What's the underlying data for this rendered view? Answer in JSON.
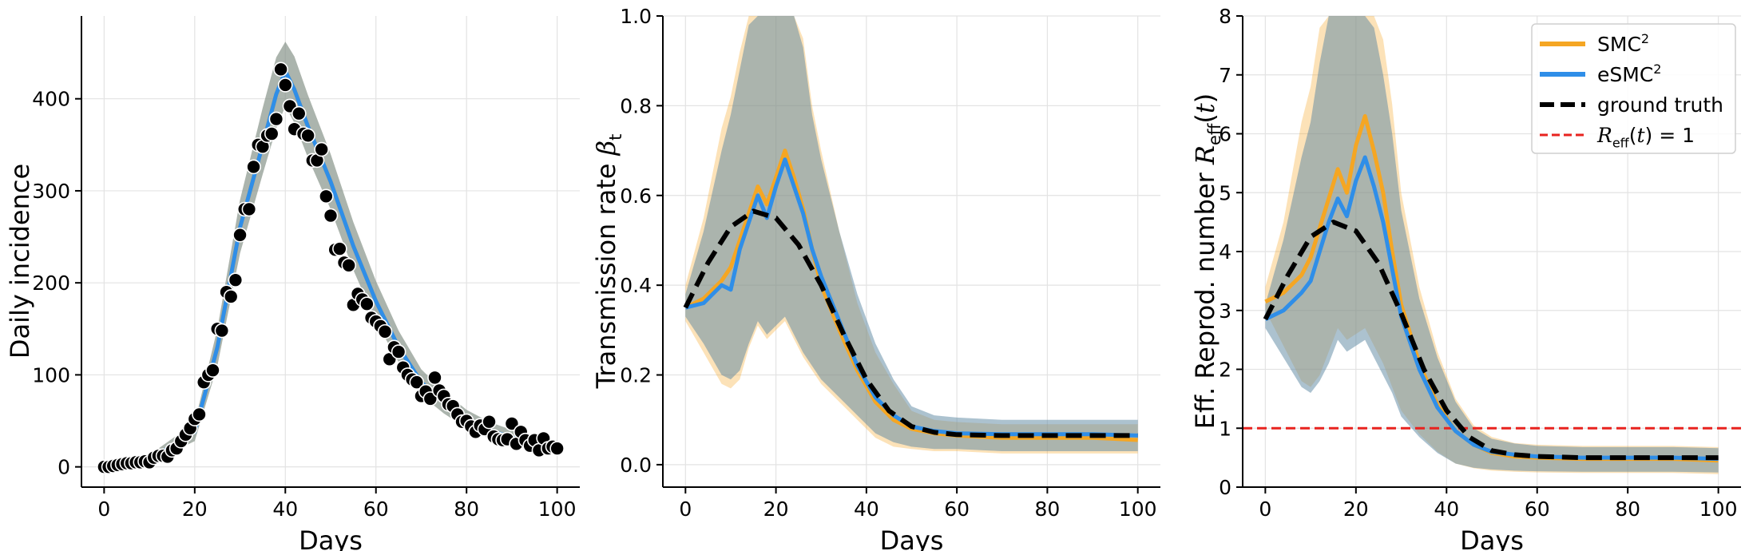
{
  "chart_data": [
    {
      "type": "line",
      "title": "",
      "xlabel": "Days",
      "ylabel": "Daily incidence",
      "xlim": [
        -5,
        105
      ],
      "ylim": [
        -22,
        490
      ],
      "xticks": [
        0,
        20,
        40,
        60,
        80,
        100
      ],
      "yticks": [
        0,
        100,
        200,
        300,
        400
      ],
      "grid": true,
      "observed_points": {
        "x": [
          0,
          1,
          2,
          3,
          4,
          5,
          6,
          7,
          8,
          9,
          10,
          11,
          12,
          13,
          14,
          15,
          16,
          17,
          18,
          19,
          20,
          21,
          22,
          23,
          24,
          25,
          26,
          27,
          28,
          29,
          30,
          31,
          32,
          33,
          34,
          35,
          36,
          37,
          38,
          39,
          40,
          41,
          42,
          43,
          44,
          45,
          46,
          47,
          48,
          49,
          50,
          51,
          52,
          53,
          54,
          55,
          56,
          57,
          58,
          59,
          60,
          61,
          62,
          63,
          64,
          65,
          66,
          67,
          68,
          69,
          70,
          71,
          72,
          73,
          74,
          75,
          76,
          77,
          78,
          79,
          80,
          81,
          82,
          83,
          84,
          85,
          86,
          87,
          88,
          89,
          90,
          91,
          92,
          93,
          94,
          95,
          96,
          97,
          98,
          99,
          100
        ],
        "y": [
          0,
          0,
          1,
          2,
          3,
          4,
          4,
          5,
          5,
          6,
          5,
          10,
          12,
          12,
          11,
          18,
          20,
          28,
          35,
          42,
          52,
          57,
          92,
          100,
          105,
          150,
          148,
          190,
          185,
          203,
          252,
          280,
          280,
          326,
          350,
          348,
          360,
          362,
          378,
          432,
          415,
          392,
          367,
          384,
          362,
          360,
          333,
          333,
          345,
          294,
          273,
          236,
          237,
          222,
          219,
          176,
          188,
          182,
          177,
          162,
          158,
          153,
          147,
          117,
          130,
          125,
          108,
          100,
          95,
          92,
          77,
          82,
          74,
          97,
          83,
          77,
          68,
          66,
          57,
          49,
          50,
          44,
          38,
          45,
          41,
          49,
          33,
          30,
          29,
          30,
          47,
          25,
          38,
          29,
          23,
          29,
          18,
          31,
          20,
          22,
          20
        ]
      },
      "series": [
        {
          "name": "SMC$^2$",
          "color": "#f5a623",
          "x": [
            0,
            10,
            20,
            25,
            30,
            35,
            38,
            40,
            42,
            45,
            50,
            55,
            60,
            65,
            70,
            75,
            80,
            85,
            90,
            95,
            100
          ],
          "y": [
            2,
            8,
            38,
            130,
            260,
            350,
            405,
            430,
            410,
            370,
            310,
            240,
            180,
            130,
            92,
            70,
            52,
            40,
            32,
            26,
            22
          ],
          "band_lo": [
            0,
            4,
            28,
            110,
            232,
            318,
            368,
            392,
            374,
            336,
            280,
            214,
            158,
            114,
            78,
            58,
            42,
            31,
            24,
            19,
            15
          ],
          "band_hi": [
            5,
            13,
            48,
            150,
            290,
            390,
            445,
            462,
            446,
            404,
            340,
            266,
            202,
            148,
            106,
            82,
            62,
            49,
            40,
            33,
            29
          ]
        },
        {
          "name": "eSMC$^2$",
          "color": "#2f8ee8",
          "x": [
            0,
            10,
            20,
            25,
            30,
            35,
            38,
            40,
            42,
            45,
            50,
            55,
            60,
            65,
            70,
            75,
            80,
            85,
            90,
            95,
            100
          ],
          "y": [
            2,
            8,
            38,
            130,
            260,
            350,
            405,
            430,
            410,
            370,
            310,
            240,
            180,
            130,
            92,
            70,
            52,
            40,
            32,
            26,
            22
          ],
          "band_lo": [
            0,
            4,
            28,
            110,
            232,
            318,
            368,
            392,
            374,
            336,
            280,
            214,
            158,
            114,
            78,
            58,
            42,
            31,
            24,
            19,
            15
          ],
          "band_hi": [
            5,
            13,
            48,
            150,
            290,
            390,
            445,
            462,
            446,
            404,
            340,
            266,
            202,
            148,
            106,
            82,
            62,
            49,
            40,
            33,
            29
          ]
        }
      ]
    },
    {
      "type": "line",
      "title": "",
      "xlabel": "Days",
      "ylabel": "Transmission rate $\\beta_t$",
      "xlim": [
        -5,
        105
      ],
      "ylim": [
        -0.05,
        1.0
      ],
      "xticks": [
        0,
        20,
        40,
        60,
        80,
        100
      ],
      "yticks": [
        0.0,
        0.2,
        0.4,
        0.6,
        0.8,
        1.0
      ],
      "grid": true,
      "series": [
        {
          "name": "SMC$^2$",
          "color": "#f5a623",
          "x": [
            0,
            4,
            8,
            10,
            12,
            14,
            16,
            18,
            20,
            22,
            24,
            26,
            28,
            30,
            34,
            38,
            42,
            46,
            50,
            55,
            60,
            70,
            80,
            90,
            100
          ],
          "y": [
            0.35,
            0.37,
            0.41,
            0.44,
            0.5,
            0.56,
            0.62,
            0.58,
            0.64,
            0.7,
            0.64,
            0.57,
            0.48,
            0.4,
            0.3,
            0.21,
            0.14,
            0.1,
            0.08,
            0.07,
            0.065,
            0.06,
            0.06,
            0.06,
            0.055
          ],
          "band_lo": [
            0.32,
            0.25,
            0.18,
            0.17,
            0.19,
            0.26,
            0.31,
            0.28,
            0.3,
            0.32,
            0.28,
            0.24,
            0.21,
            0.18,
            0.14,
            0.1,
            0.06,
            0.04,
            0.035,
            0.03,
            0.03,
            0.025,
            0.025,
            0.025,
            0.025
          ],
          "band_hi": [
            0.4,
            0.55,
            0.75,
            0.82,
            0.92,
            1.0,
            1.0,
            1.0,
            1.0,
            1.0,
            1.0,
            0.95,
            0.8,
            0.7,
            0.52,
            0.36,
            0.25,
            0.18,
            0.12,
            0.1,
            0.095,
            0.09,
            0.09,
            0.09,
            0.09
          ]
        },
        {
          "name": "eSMC$^2$",
          "color": "#2f8ee8",
          "x": [
            0,
            4,
            8,
            10,
            12,
            14,
            16,
            18,
            20,
            22,
            24,
            26,
            28,
            30,
            34,
            38,
            42,
            46,
            50,
            55,
            60,
            70,
            80,
            90,
            100
          ],
          "y": [
            0.35,
            0.36,
            0.4,
            0.39,
            0.48,
            0.54,
            0.6,
            0.55,
            0.62,
            0.68,
            0.62,
            0.56,
            0.48,
            0.42,
            0.32,
            0.22,
            0.15,
            0.11,
            0.085,
            0.075,
            0.07,
            0.068,
            0.068,
            0.068,
            0.065
          ],
          "band_lo": [
            0.33,
            0.27,
            0.2,
            0.19,
            0.21,
            0.27,
            0.32,
            0.29,
            0.31,
            0.33,
            0.29,
            0.25,
            0.22,
            0.19,
            0.15,
            0.11,
            0.07,
            0.05,
            0.04,
            0.035,
            0.035,
            0.03,
            0.03,
            0.03,
            0.03
          ],
          "band_hi": [
            0.38,
            0.52,
            0.7,
            0.78,
            0.88,
            0.98,
            1.0,
            1.0,
            1.0,
            1.0,
            1.0,
            0.93,
            0.78,
            0.68,
            0.52,
            0.38,
            0.27,
            0.19,
            0.13,
            0.11,
            0.105,
            0.1,
            0.1,
            0.1,
            0.1
          ]
        },
        {
          "name": "ground truth",
          "color": "#000000",
          "dashed": true,
          "x": [
            0,
            5,
            10,
            15,
            20,
            25,
            30,
            35,
            40,
            45,
            50,
            55,
            60,
            70,
            80,
            90,
            100
          ],
          "y": [
            0.35,
            0.45,
            0.53,
            0.565,
            0.55,
            0.49,
            0.4,
            0.29,
            0.19,
            0.12,
            0.085,
            0.072,
            0.067,
            0.065,
            0.065,
            0.065,
            0.065
          ]
        }
      ]
    },
    {
      "type": "line",
      "title": "",
      "xlabel": "Days",
      "ylabel": "Eff. Reprod. number $R_{\\mathrm{eff}}(t)$",
      "xlim": [
        -5,
        105
      ],
      "ylim": [
        0,
        8
      ],
      "xticks": [
        0,
        20,
        40,
        60,
        80,
        100
      ],
      "yticks": [
        0,
        1,
        2,
        3,
        4,
        5,
        6,
        7,
        8
      ],
      "grid": true,
      "legend": "top-right",
      "reference_line": {
        "name": "$R_{\\mathrm{eff}}(t) = 1$",
        "y": 1,
        "color": "#e8231f",
        "dashed": true
      },
      "series": [
        {
          "name": "SMC$^2$",
          "color": "#f5a623",
          "x": [
            0,
            4,
            8,
            10,
            12,
            14,
            16,
            18,
            20,
            22,
            24,
            26,
            28,
            30,
            34,
            38,
            42,
            46,
            50,
            55,
            60,
            70,
            80,
            90,
            100
          ],
          "y": [
            3.15,
            3.3,
            3.6,
            3.9,
            4.4,
            4.9,
            5.4,
            5.0,
            5.8,
            6.3,
            5.7,
            5.0,
            4.0,
            3.1,
            2.1,
            1.4,
            0.95,
            0.72,
            0.58,
            0.52,
            0.5,
            0.48,
            0.48,
            0.48,
            0.45
          ],
          "band_lo": [
            3.0,
            2.4,
            1.8,
            1.7,
            1.9,
            2.3,
            2.7,
            2.5,
            2.6,
            2.7,
            2.4,
            2.1,
            1.7,
            1.3,
            0.9,
            0.6,
            0.4,
            0.32,
            0.28,
            0.26,
            0.25,
            0.24,
            0.24,
            0.24,
            0.22
          ],
          "band_hi": [
            3.4,
            4.5,
            6.2,
            6.8,
            7.8,
            8.0,
            8.0,
            8.0,
            8.0,
            8.0,
            8.0,
            7.6,
            6.5,
            5.0,
            3.4,
            2.3,
            1.5,
            1.05,
            0.85,
            0.75,
            0.72,
            0.7,
            0.7,
            0.7,
            0.68
          ]
        },
        {
          "name": "eSMC$^2$",
          "color": "#2f8ee8",
          "x": [
            0,
            4,
            8,
            10,
            12,
            14,
            16,
            18,
            20,
            22,
            24,
            26,
            28,
            30,
            34,
            38,
            42,
            46,
            50,
            55,
            60,
            70,
            80,
            90,
            100
          ],
          "y": [
            2.85,
            3.0,
            3.3,
            3.5,
            4.0,
            4.5,
            4.9,
            4.6,
            5.2,
            5.6,
            5.1,
            4.5,
            3.7,
            2.9,
            2.0,
            1.35,
            0.95,
            0.72,
            0.6,
            0.55,
            0.52,
            0.5,
            0.5,
            0.5,
            0.48
          ],
          "band_lo": [
            2.7,
            2.2,
            1.7,
            1.6,
            1.8,
            2.1,
            2.5,
            2.3,
            2.4,
            2.5,
            2.2,
            1.9,
            1.6,
            1.2,
            0.85,
            0.58,
            0.4,
            0.33,
            0.3,
            0.28,
            0.27,
            0.26,
            0.26,
            0.26,
            0.25
          ],
          "band_hi": [
            3.1,
            4.2,
            5.6,
            6.2,
            7.2,
            8.0,
            8.0,
            8.0,
            8.0,
            8.0,
            7.8,
            7.0,
            6.0,
            4.7,
            3.2,
            2.2,
            1.45,
            1.0,
            0.82,
            0.74,
            0.7,
            0.68,
            0.68,
            0.68,
            0.66
          ]
        },
        {
          "name": "ground truth",
          "color": "#000000",
          "dashed": true,
          "x": [
            0,
            5,
            10,
            15,
            20,
            25,
            30,
            35,
            40,
            45,
            50,
            55,
            60,
            70,
            80,
            90,
            100
          ],
          "y": [
            2.85,
            3.6,
            4.25,
            4.5,
            4.35,
            3.8,
            2.95,
            2.0,
            1.3,
            0.85,
            0.62,
            0.55,
            0.52,
            0.5,
            0.5,
            0.5,
            0.5
          ]
        }
      ]
    }
  ]
}
